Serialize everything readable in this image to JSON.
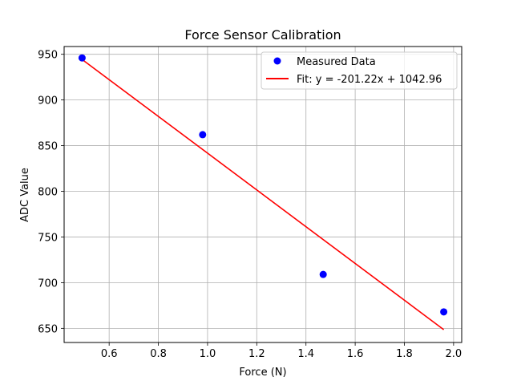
{
  "chart_data": {
    "type": "scatter",
    "title": "Force Sensor Calibration",
    "xlabel": "Force (N)",
    "ylabel": "ADC Value",
    "xlim": [
      0.417,
      2.033
    ],
    "ylim": [
      634.5,
      958.5
    ],
    "xticks": [
      0.6,
      0.8,
      1.0,
      1.2,
      1.4,
      1.6,
      1.8,
      2.0
    ],
    "xtick_labels": [
      "0.6",
      "0.8",
      "1.0",
      "1.2",
      "1.4",
      "1.6",
      "1.8",
      "2.0"
    ],
    "yticks": [
      650,
      700,
      750,
      800,
      850,
      900,
      950
    ],
    "ytick_labels": [
      "650",
      "700",
      "750",
      "800",
      "850",
      "900",
      "950"
    ],
    "grid": true,
    "legend_position": "top-right",
    "series": [
      {
        "name": "Measured Data",
        "kind": "scatter",
        "color": "#0000ff",
        "x": [
          0.49,
          0.98,
          1.47,
          1.96
        ],
        "y": [
          946,
          862,
          709,
          668
        ]
      },
      {
        "name": "Fit: y = -201.22x + 1042.96",
        "kind": "line",
        "color": "#ff0000",
        "slope": -201.22,
        "intercept": 1042.96,
        "x": [
          0.49,
          1.96
        ]
      }
    ]
  }
}
